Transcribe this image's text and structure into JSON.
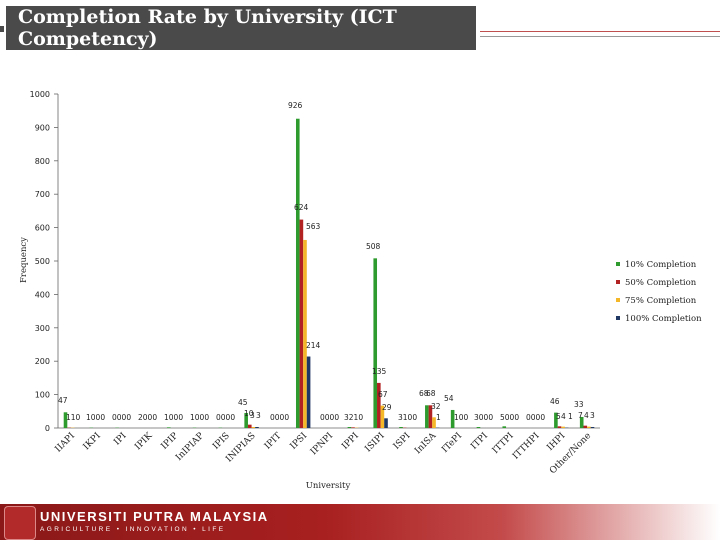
{
  "title": "Completion Rate by University (ICT Competency)",
  "footer": {
    "name": "UNIVERSITI PUTRA MALAYSIA",
    "tagline": "AGRICULTURE • INNOVATION • LIFE"
  },
  "chart_data": {
    "type": "bar",
    "title": "Completion Rate by University (ICT Competency)",
    "xlabel": "University",
    "ylabel": "Frequency",
    "ylim": [
      0,
      1000
    ],
    "yticks": [
      0,
      100,
      200,
      300,
      400,
      500,
      600,
      700,
      800,
      900,
      1000
    ],
    "grid": false,
    "legend_position": "right",
    "categories": [
      "IIAPI",
      "IKPI",
      "IPI",
      "IPIK",
      "IPIP",
      "InIPIAP",
      "IPIS",
      "INIPIAS",
      "IPIT",
      "IPSI",
      "IPNPI",
      "IPPI",
      "ISIPI",
      "ISPI",
      "InISA",
      "ITePI",
      "ITPI",
      "ITTPI",
      "ITTHPI",
      "IHPI",
      "Other/None"
    ],
    "series": [
      {
        "name": "10% Completion",
        "color": "#2e9b2e",
        "values": [
          47,
          1,
          1,
          0,
          2,
          1,
          1,
          45,
          0,
          926,
          0,
          3,
          508,
          3,
          68,
          54,
          3,
          5,
          0,
          46,
          33
        ]
      },
      {
        "name": "50% Completion",
        "color": "#b22222",
        "values": [
          1,
          0,
          0,
          0,
          0,
          0,
          0,
          10,
          0,
          624,
          0,
          2,
          135,
          1,
          68,
          0,
          0,
          0,
          0,
          5,
          7
        ]
      },
      {
        "name": "75% Completion",
        "color": "#f4b728",
        "values": [
          1,
          0,
          0,
          0,
          0,
          0,
          0,
          3,
          0,
          563,
          0,
          1,
          67,
          0,
          32,
          0,
          0,
          0,
          0,
          4,
          4
        ]
      },
      {
        "name": "100% Completion",
        "color": "#1f3864",
        "values": [
          0,
          0,
          0,
          0,
          0,
          0,
          0,
          3,
          0,
          214,
          0,
          0,
          29,
          0,
          1,
          0,
          0,
          0,
          0,
          1,
          3
        ]
      }
    ],
    "value_labels": [
      "47",
      "110",
      "1000",
      "0000",
      "2000",
      "1000",
      "1000",
      "0000",
      "45",
      "10",
      "3",
      "3",
      "0000",
      "926",
      "624",
      "563",
      "214",
      "0000",
      "3210",
      "508",
      "135",
      "67",
      "29",
      "3100",
      "68",
      "68",
      "32",
      "1",
      "54",
      "100",
      "3000",
      "5000",
      "0000",
      "46",
      "5",
      "4",
      "1",
      "33",
      "7",
      "4",
      "3"
    ]
  }
}
